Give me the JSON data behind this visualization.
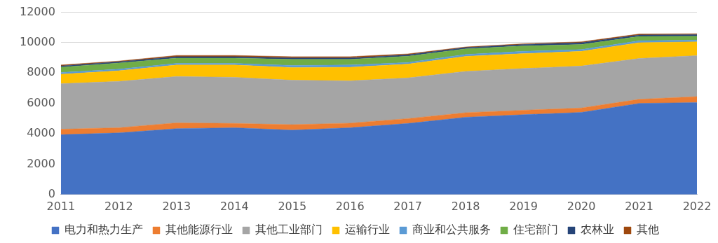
{
  "chart_data": {
    "type": "area",
    "stacked": true,
    "categories": [
      "2011",
      "2012",
      "2013",
      "2014",
      "2015",
      "2016",
      "2017",
      "2018",
      "2019",
      "2020",
      "2021",
      "2022"
    ],
    "series": [
      {
        "name": "电力和热力生产",
        "color": "#4472c4",
        "values": [
          3940,
          4060,
          4340,
          4400,
          4240,
          4400,
          4680,
          5090,
          5260,
          5410,
          6000,
          6060
        ]
      },
      {
        "name": "其他能源行业",
        "color": "#ed7d31",
        "values": [
          360,
          340,
          380,
          280,
          360,
          300,
          320,
          300,
          290,
          290,
          270,
          390
        ]
      },
      {
        "name": "其他工业部门",
        "color": "#a5a5a5",
        "values": [
          3000,
          3050,
          3050,
          3040,
          2930,
          2790,
          2680,
          2720,
          2750,
          2760,
          2690,
          2700
        ]
      },
      {
        "name": "运输行业",
        "color": "#ffc000",
        "values": [
          620,
          700,
          760,
          810,
          830,
          890,
          910,
          990,
          980,
          970,
          1040,
          910
        ]
      },
      {
        "name": "商业和公共服务",
        "color": "#5b9bd5",
        "values": [
          120,
          110,
          110,
          110,
          140,
          150,
          110,
          130,
          150,
          120,
          130,
          110
        ]
      },
      {
        "name": "住宅部门",
        "color": "#70ad47",
        "values": [
          350,
          400,
          340,
          340,
          400,
          370,
          410,
          360,
          360,
          330,
          280,
          260
        ]
      },
      {
        "name": "农林业",
        "color": "#264478",
        "values": [
          80,
          80,
          100,
          100,
          90,
          90,
          90,
          90,
          90,
          120,
          100,
          100
        ]
      },
      {
        "name": "其他",
        "color": "#9e480e",
        "values": [
          60,
          50,
          80,
          80,
          90,
          90,
          60,
          40,
          50,
          60,
          60,
          60
        ]
      }
    ],
    "ylim": [
      0,
      12000
    ],
    "yticks": [
      0,
      2000,
      4000,
      6000,
      8000,
      10000,
      12000
    ],
    "grid": "y",
    "legend": "bottom"
  }
}
